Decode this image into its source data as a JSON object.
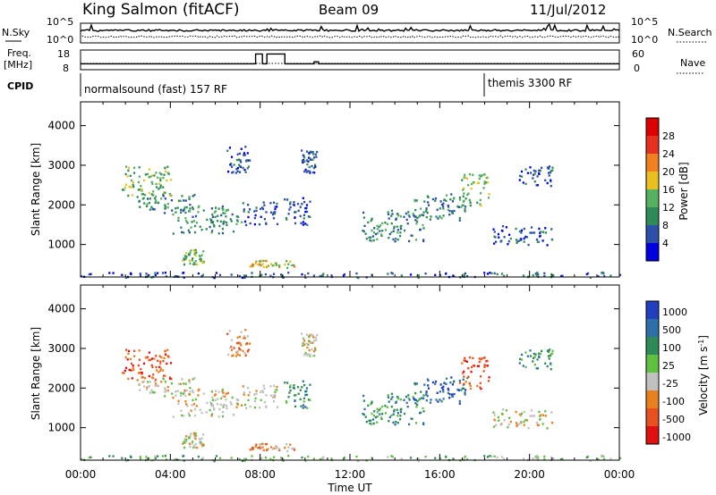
{
  "header": {
    "station": "King Salmon (fitACF)",
    "beam": "Beam 09",
    "date": "11/Jul/2012"
  },
  "top_panels": {
    "nsky_label": "N.Sky",
    "nsearch_label": "N.Search",
    "noise_ticks": [
      "10^5",
      "10^0"
    ],
    "freq_label_1": "Freq.",
    "freq_label_2": "[MHz]",
    "freq_ticks": [
      "18",
      "8"
    ],
    "nave_label": "Nave",
    "nave_ticks": [
      "60",
      "0"
    ],
    "cpid_label": "CPID",
    "cpid_modes": [
      {
        "label": "normalsound (fast) 157 RF",
        "start_hour": 0
      },
      {
        "label": "themis 3300 RF",
        "start_hour": 18
      }
    ],
    "freq_trace_mhz": [
      [
        0,
        11
      ],
      [
        7.8,
        11
      ],
      [
        7.8,
        16
      ],
      [
        8.1,
        16
      ],
      [
        8.1,
        11
      ],
      [
        8.3,
        11
      ],
      [
        8.3,
        16
      ],
      [
        9.1,
        16
      ],
      [
        9.1,
        11
      ],
      [
        10.4,
        11
      ],
      [
        10.4,
        12
      ],
      [
        10.6,
        12
      ],
      [
        10.6,
        11
      ],
      [
        24,
        11
      ]
    ]
  },
  "chart_data": [
    {
      "type": "heatmap",
      "ylabel": "Slant Range [km]",
      "xlabel": "Time UT",
      "xlim": [
        0,
        24
      ],
      "ylim": [
        180,
        4600
      ],
      "x_ticks": [
        "00:00",
        "04:00",
        "08:00",
        "12:00",
        "16:00",
        "20:00",
        "00:00"
      ],
      "y_ticks": [
        1000,
        2000,
        3000,
        4000
      ],
      "colorbar": {
        "label": "Power [dB]",
        "ticks": [
          "4",
          "8",
          "12",
          "16",
          "20",
          "24",
          "28"
        ],
        "colors": [
          "#0000e0",
          "#2c4fa8",
          "#2e8b57",
          "#55b060",
          "#e8c020",
          "#f08020",
          "#e83020",
          "#dd0000"
        ]
      },
      "scatter_regions": [
        {
          "time": [
            1.7,
            4.0
          ],
          "range": [
            2200,
            3000
          ],
          "level": 3
        },
        {
          "time": [
            2.5,
            5.2
          ],
          "range": [
            1800,
            2300
          ],
          "level": 2
        },
        {
          "time": [
            4.5,
            5.5
          ],
          "range": [
            500,
            900
          ],
          "level": 3
        },
        {
          "time": [
            4.0,
            7.2
          ],
          "range": [
            1300,
            2000
          ],
          "level": 2
        },
        {
          "time": [
            6.5,
            7.5
          ],
          "range": [
            2800,
            3500
          ],
          "level": 1
        },
        {
          "time": [
            7.5,
            9.5
          ],
          "range": [
            420,
            620
          ],
          "level": 4
        },
        {
          "time": [
            7.2,
            8.8
          ],
          "range": [
            1500,
            2100
          ],
          "level": 1
        },
        {
          "time": [
            9.0,
            10.2
          ],
          "range": [
            1500,
            2200
          ],
          "level": 1
        },
        {
          "time": [
            9.8,
            10.5
          ],
          "range": [
            2800,
            3400
          ],
          "level": 1
        },
        {
          "time": [
            12.5,
            15.5
          ],
          "range": [
            1100,
            1900
          ],
          "level": 2
        },
        {
          "time": [
            14.8,
            17.2
          ],
          "range": [
            1600,
            2300
          ],
          "level": 2
        },
        {
          "time": [
            16.8,
            18.2
          ],
          "range": [
            2000,
            2800
          ],
          "level": 3
        },
        {
          "time": [
            18.2,
            21.0
          ],
          "range": [
            1000,
            1500
          ],
          "level": 1
        },
        {
          "time": [
            19.5,
            21.0
          ],
          "range": [
            2500,
            3000
          ],
          "level": 1
        },
        {
          "time": [
            0.0,
            24.0
          ],
          "range": [
            180,
            320
          ],
          "level": 1
        }
      ]
    },
    {
      "type": "heatmap",
      "ylabel": "Slant Range [km]",
      "xlabel": "Time UT",
      "xlim": [
        0,
        24
      ],
      "ylim": [
        180,
        4600
      ],
      "x_ticks": [
        "00:00",
        "04:00",
        "08:00",
        "12:00",
        "16:00",
        "20:00",
        "00:00"
      ],
      "y_ticks": [
        1000,
        2000,
        3000,
        4000
      ],
      "colorbar": {
        "label": "Velocity [m s^-1]",
        "ticks": [
          "1000",
          "500",
          "100",
          "25",
          "-25",
          "-100",
          "-500",
          "-1000"
        ],
        "colors": [
          "#2040c0",
          "#2e6fa8",
          "#2e8b57",
          "#60c040",
          "#c0c0c0",
          "#e88020",
          "#e85020",
          "#e01010"
        ]
      },
      "scatter_regions": [
        {
          "time": [
            1.7,
            4.0
          ],
          "range": [
            2200,
            3000
          ],
          "level": 6
        },
        {
          "time": [
            2.5,
            5.2
          ],
          "range": [
            1800,
            2300
          ],
          "level": 4
        },
        {
          "time": [
            4.5,
            5.5
          ],
          "range": [
            500,
            900
          ],
          "level": 4
        },
        {
          "time": [
            4.0,
            7.2
          ],
          "range": [
            1300,
            2000
          ],
          "level": 4
        },
        {
          "time": [
            6.5,
            7.5
          ],
          "range": [
            2800,
            3500
          ],
          "level": 5
        },
        {
          "time": [
            7.5,
            9.5
          ],
          "range": [
            420,
            620
          ],
          "level": 5
        },
        {
          "time": [
            7.2,
            8.8
          ],
          "range": [
            1500,
            2100
          ],
          "level": 4
        },
        {
          "time": [
            9.0,
            10.2
          ],
          "range": [
            1500,
            2200
          ],
          "level": 2
        },
        {
          "time": [
            9.8,
            10.5
          ],
          "range": [
            2800,
            3400
          ],
          "level": 4
        },
        {
          "time": [
            12.5,
            15.5
          ],
          "range": [
            1100,
            1900
          ],
          "level": 2
        },
        {
          "time": [
            14.8,
            17.2
          ],
          "range": [
            1600,
            2300
          ],
          "level": 1
        },
        {
          "time": [
            16.8,
            18.2
          ],
          "range": [
            2000,
            2800
          ],
          "level": 6
        },
        {
          "time": [
            18.2,
            21.0
          ],
          "range": [
            1000,
            1500
          ],
          "level": 4
        },
        {
          "time": [
            19.5,
            21.0
          ],
          "range": [
            2500,
            3000
          ],
          "level": 2
        },
        {
          "time": [
            0.0,
            24.0
          ],
          "range": [
            180,
            320
          ],
          "level": 3
        }
      ]
    }
  ]
}
